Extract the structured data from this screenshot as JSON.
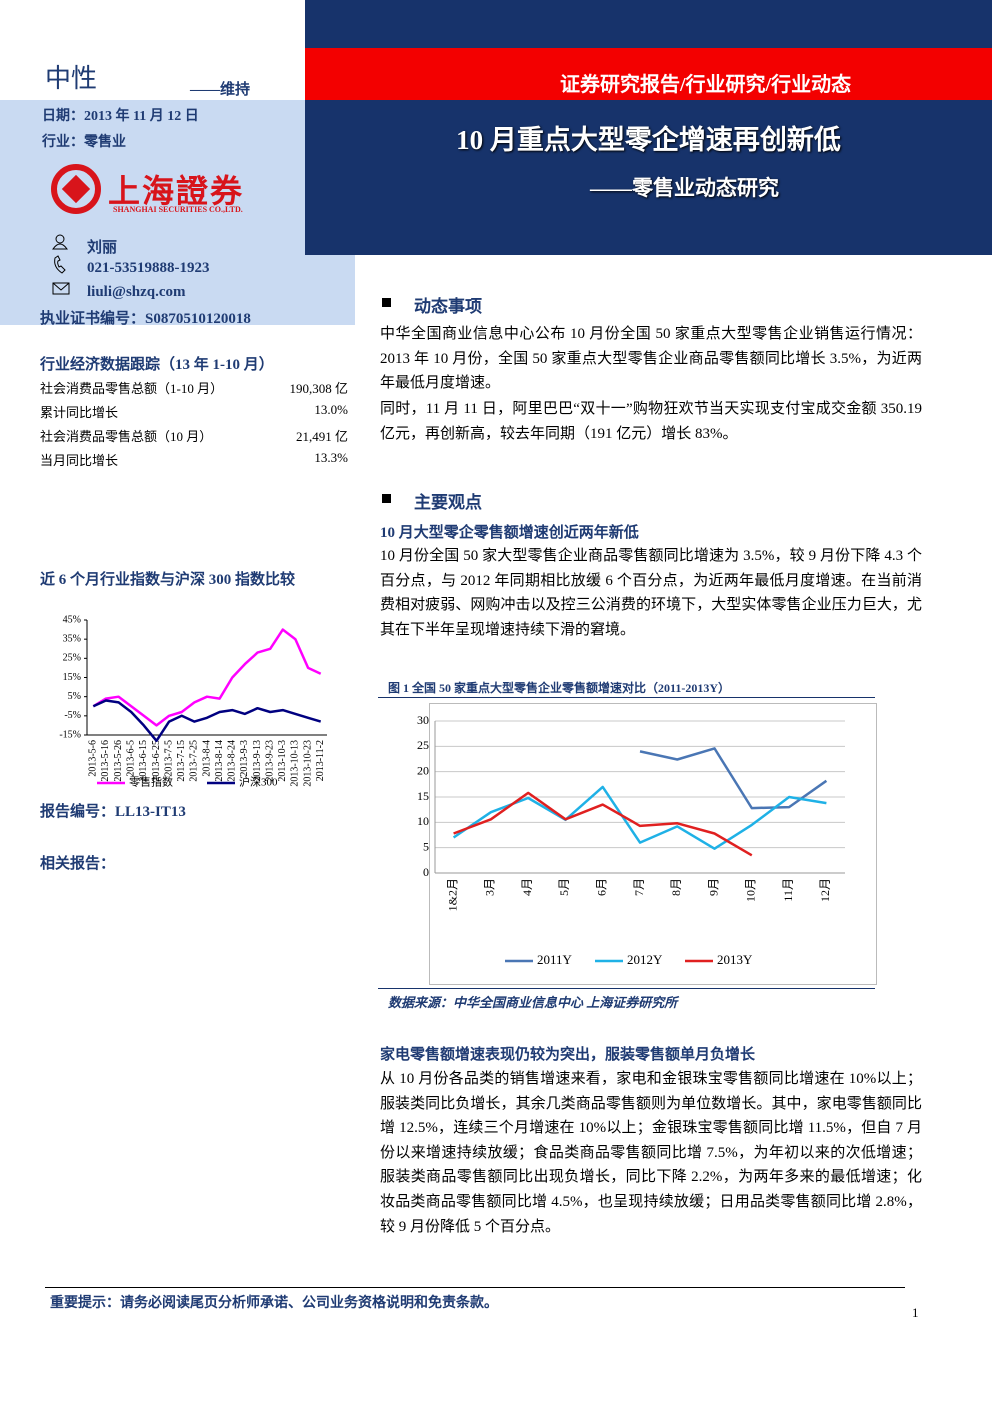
{
  "header": {
    "rating": "中性",
    "rating_note": "——维持",
    "date": "日期：2013 年 11 月 12 日",
    "industry": "行业：零售业",
    "logo_cn": "上海證券",
    "logo_en": "SHANGHAI SECURITIES CO.,LTD.",
    "report_type": "证券研究报告/行业研究/行业动态",
    "title": "10 月重点大型零企增速再创新低",
    "subtitle": "——零售业动态研究"
  },
  "analyst": {
    "name": "刘丽",
    "phone": "021-53519888-1923",
    "email": "liuli@shzq.com",
    "certificate": "执业证书编号：S0870510120018"
  },
  "stats": {
    "title": "行业经济数据跟踪（13 年 1-10 月）",
    "rows": [
      [
        "社会消费品零售总额（1-10 月）",
        "190,308 亿"
      ],
      [
        "累计同比增长",
        "13.0%"
      ],
      [
        "社会消费品零售总额（10 月）",
        "21,491 亿"
      ],
      [
        "当月同比增长",
        "13.3%"
      ]
    ]
  },
  "report_no": "报告编号：LL13-IT13",
  "related": "相关报告：",
  "sections": [
    {
      "heading": "动态事项",
      "paragraphs": [
        "中华全国商业信息中心公布 10 月份全国 50 家重点大型零售企业销售运行情况：2013 年 10 月份，全国 50 家重点大型零售企业商品零售额同比增长 3.5%，为近两年最低月度增速。",
        "同时，11 月 11 日，阿里巴巴“双十一”购物狂欢节当天实现支付宝成交金额 350.19 亿元，再创新高，较去年同期（191 亿元）增长 83%。"
      ]
    },
    {
      "heading": "主要观点",
      "subheadings": [
        "10 月大型零企零售额增速创近两年新低",
        "家电零售额增速表现仍较为突出，服装零售额单月负增长"
      ],
      "paragraphs": [
        "10 月份全国 50 家大型零售企业商品零售额同比增速为 3.5%，较 9 月份下降 4.3 个百分点，与 2012 年同期相比放缓 6 个百分点，为近两年最低月度增速。在当前消费相对疲弱、网购冲击以及控三公消费的环境下，大型实体零售企业压力巨大，尤其在下半年呈现增速持续下滑的窘境。",
        "从 10 月份各品类的销售增速来看，家电和金银珠宝零售额同比增速在 10%以上；服装类同比负增长，其余几类商品零售额则为单位数增长。其中，家电零售额同比增 12.5%，连续三个月增速在 10%以上；金银珠宝零售额同比增 11.5%，但自 7 月份以来增速持续放缓；食品类商品零售额同比增 7.5%，为年初以来的次低增速；服装类商品零售额同比出现负增长，同比下降 2.2%，为两年多来的最低增速；化妆品类商品零售额同比增 4.5%，也呈现持续放缓；日用品类零售额同比增 2.8%，较 9 月份降低 5 个百分点。"
      ]
    }
  ],
  "footer": {
    "disclaimer": "重要提示：请务必阅读尾页分析师承诺、公司业务资格说明和免责条款。",
    "page": "1"
  },
  "chart_data": [
    {
      "type": "line",
      "title": "近 6 个月行业指数与沪深 300 指数比较",
      "categories": [
        "2013-5-6",
        "2013-5-16",
        "2013-5-26",
        "2013-6-5",
        "2013-6-15",
        "2013-6-25",
        "2013-7-5",
        "2013-7-15",
        "2013-7-25",
        "2013-8-4",
        "2013-8-14",
        "2013-8-24",
        "2013-9-3",
        "2013-9-13",
        "2013-9-23",
        "2013-10-3",
        "2013-10-13",
        "2013-10-23",
        "2013-11-2"
      ],
      "series": [
        {
          "name": "零售指数",
          "color": "#ff00ff",
          "values": [
            0,
            4,
            5,
            0,
            -5,
            -10,
            -5,
            -3,
            2,
            5,
            4,
            15,
            22,
            28,
            30,
            40,
            35,
            20,
            17
          ]
        },
        {
          "name": "沪深300",
          "color": "#000080",
          "values": [
            0,
            3,
            2,
            -3,
            -10,
            -18,
            -8,
            -5,
            -8,
            -6,
            -3,
            -2,
            -4,
            -1,
            -3,
            -2,
            -4,
            -6,
            -8
          ]
        }
      ],
      "ylim": [
        -15,
        45
      ],
      "yticks": [
        {
          "value": -15,
          "label": "-15%"
        },
        {
          "value": -5,
          "label": "-5%"
        },
        {
          "value": 5,
          "label": "5%"
        },
        {
          "value": 15,
          "label": "15%"
        },
        {
          "value": 25,
          "label": "25%"
        },
        {
          "value": 35,
          "label": "35%"
        },
        {
          "value": 45,
          "label": "45%"
        }
      ],
      "grid": false,
      "legend": "bottom"
    },
    {
      "type": "line",
      "title": "图 1 全国 50 家重点大型零售企业零售额增速对比（2011-2013Y）",
      "source": "数据来源：中华全国商业信息中心 上海证券研究所",
      "categories": [
        "1&2月",
        "3月",
        "4月",
        "5月",
        "6月",
        "7月",
        "8月",
        "9月",
        "10月",
        "11月",
        "12月"
      ],
      "series": [
        {
          "name": "2011Y",
          "color": "#4a76b4",
          "values": [
            null,
            null,
            null,
            null,
            null,
            24,
            22.4,
            24.6,
            12.8,
            13,
            18.2
          ]
        },
        {
          "name": "2012Y",
          "color": "#1fb1e6",
          "values": [
            7,
            12,
            14.8,
            10.5,
            17,
            6,
            9.2,
            4.8,
            9.5,
            15,
            13.8
          ]
        },
        {
          "name": "2013Y",
          "color": "#e02020",
          "values": [
            7.8,
            10.6,
            15.8,
            10.6,
            13.5,
            9.3,
            9.8,
            7.8,
            3.5,
            null,
            null
          ]
        }
      ],
      "ylim": [
        0,
        30
      ],
      "yticks": [
        0,
        5,
        10,
        15,
        20,
        25,
        30
      ],
      "grid": true,
      "legend": "bottom"
    }
  ]
}
